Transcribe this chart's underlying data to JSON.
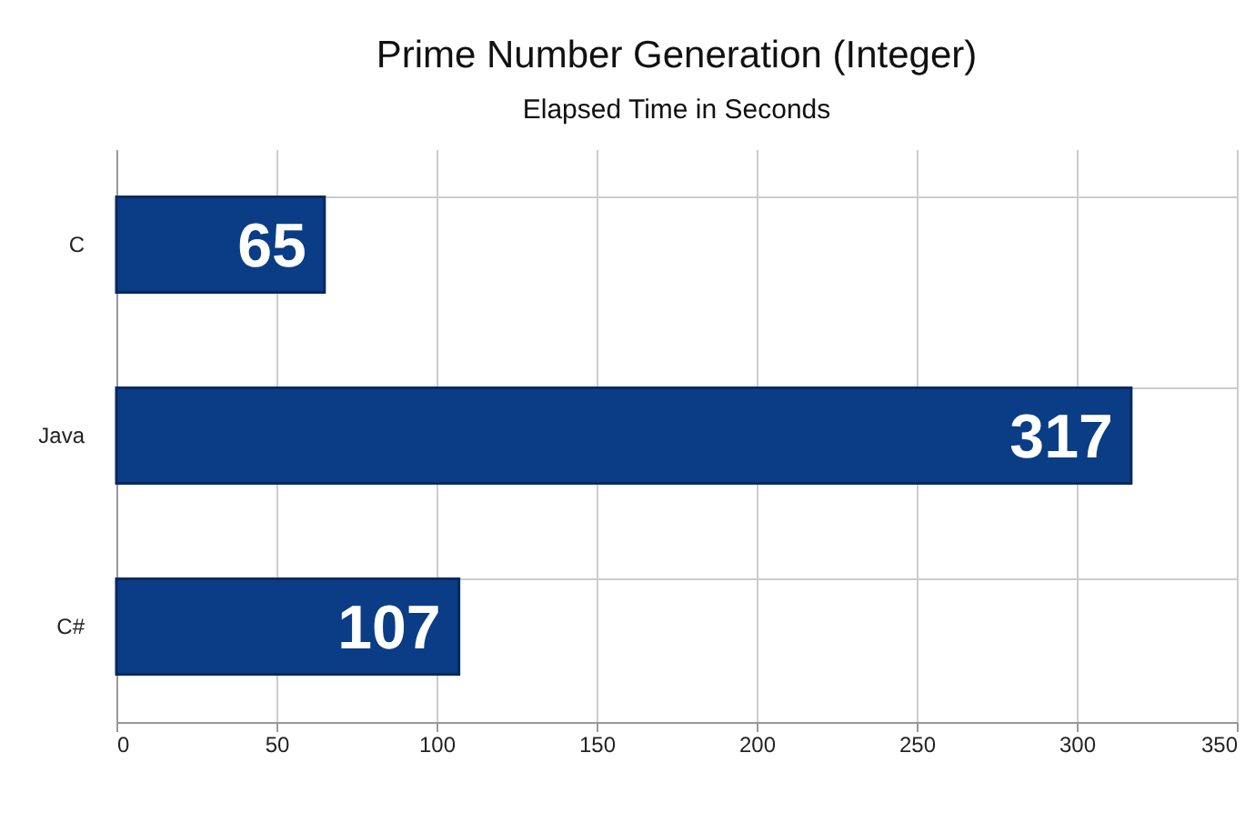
{
  "chart_data": {
    "type": "bar",
    "orientation": "horizontal",
    "title": "Prime Number Generation (Integer)",
    "subtitle": "Elapsed Time in Seconds",
    "categories": [
      "C",
      "Java",
      "C#"
    ],
    "values": [
      65,
      317,
      107
    ],
    "color": "#0b3d86",
    "xlim": [
      0,
      350
    ],
    "xticks": [
      0,
      50,
      100,
      150,
      200,
      250,
      300,
      350
    ],
    "grid": true,
    "data_labels": true
  }
}
